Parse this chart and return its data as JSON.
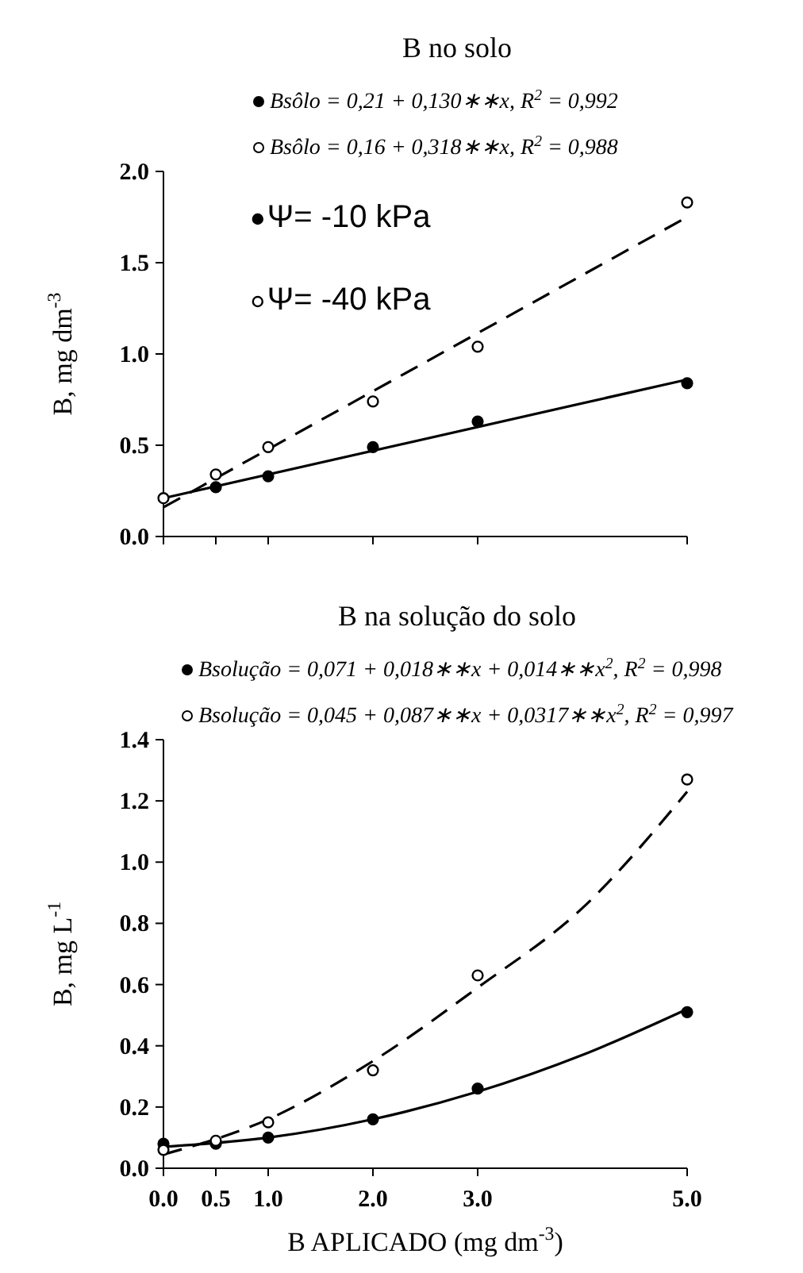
{
  "chart_data": [
    {
      "type": "scatter",
      "title": "B no solo",
      "ylabel": "B, mg dm$^{-3}$",
      "xlim": [
        0,
        5
      ],
      "xticks": [
        {
          "value": 0,
          "label": null
        },
        {
          "value": 0.5,
          "label": null
        },
        {
          "value": 1,
          "label": null
        },
        {
          "value": 2,
          "label": null
        },
        {
          "value": 3,
          "label": null
        },
        {
          "value": 5,
          "label": null
        }
      ],
      "ylim": [
        0,
        2
      ],
      "yticks": [
        {
          "value": 0,
          "label": "0.0"
        },
        {
          "value": 0.5,
          "label": "0.5"
        },
        {
          "value": 1,
          "label": "1.0"
        },
        {
          "value": 1.5,
          "label": "1.5"
        },
        {
          "value": 2,
          "label": "2.0"
        }
      ],
      "tick_labels": "y",
      "grid": false,
      "legend": "top left",
      "marker": "circle",
      "annotations": [
        "Bsôlo = 0,21 + 0,130∗∗x, R$^{2}$ = 0,992",
        "Bsôlo = 0,16 + 0,318∗∗x, R$^{2}$ = 0,988"
      ],
      "series": [
        {
          "name": "Ψ= -10 kPa",
          "color": "#000000",
          "x": [
            0.5,
            1,
            2,
            3,
            5
          ],
          "values": [
            0.27,
            0.33,
            0.49,
            0.63,
            0.84
          ]
        },
        {
          "name": "Ψ= -40 kPa",
          "color": "#ffffff",
          "x": [
            0,
            0.5,
            1,
            2,
            3,
            5
          ],
          "values": [
            0.21,
            0.34,
            0.49,
            0.74,
            1.04,
            1.83
          ]
        },
        {
          "type": "line",
          "color": "#000000",
          "line_style": "solid",
          "marker": "none",
          "x": [
            0,
            5
          ],
          "values": [
            0.21,
            0.86
          ]
        },
        {
          "type": "line",
          "color": "#000000",
          "line_style": "dashed",
          "marker": "none",
          "x": [
            0,
            5
          ],
          "values": [
            0.16,
            1.75
          ]
        }
      ]
    },
    {
      "type": "scatter",
      "title": "B na solução do solo",
      "xlabel": "B APLICADO (mg dm$^{-3}$)",
      "ylabel": "B, mg L$^{-1}$",
      "xlim": [
        0,
        5
      ],
      "xticks": [
        {
          "value": 0,
          "label": "0.0"
        },
        {
          "value": 0.5,
          "label": "0.5"
        },
        {
          "value": 1,
          "label": "1.0"
        },
        {
          "value": 2,
          "label": "2.0"
        },
        {
          "value": 3,
          "label": "3.0"
        },
        {
          "value": 5,
          "label": "5.0"
        }
      ],
      "ylim": [
        0,
        1.4
      ],
      "yticks": [
        {
          "value": 0,
          "label": "0.0"
        },
        {
          "value": 0.2,
          "label": "0.2"
        },
        {
          "value": 0.4,
          "label": "0.4"
        },
        {
          "value": 0.6,
          "label": "0.6"
        },
        {
          "value": 0.8,
          "label": "0.8"
        },
        {
          "value": 1,
          "label": "1.0"
        },
        {
          "value": 1.2,
          "label": "1.2"
        },
        {
          "value": 1.4,
          "label": "1.4"
        }
      ],
      "grid": false,
      "legend": false,
      "marker": "circle",
      "annotations": [
        "Bsolução = 0,071 + 0,018∗∗x + 0,014∗∗x$^{2}$, R$^{2}$ = 0,998",
        "Bsolução = 0,045 + 0,087∗∗x + 0,0317∗∗x$^{2}$, R$^{2}$ = 0,997"
      ],
      "series": [
        {
          "color": "#000000",
          "x": [
            0,
            0.5,
            1,
            2,
            3,
            5
          ],
          "values": [
            0.08,
            0.08,
            0.1,
            0.16,
            0.26,
            0.51
          ]
        },
        {
          "color": "#ffffff",
          "x": [
            0,
            0.5,
            1,
            2,
            3,
            5
          ],
          "values": [
            0.06,
            0.09,
            0.15,
            0.32,
            0.63,
            1.27
          ]
        },
        {
          "type": "line",
          "color": "#000000",
          "line_style": "solid",
          "marker": "none",
          "x": [
            0,
            1,
            2,
            3,
            4,
            5
          ],
          "values": [
            0.07,
            0.1,
            0.16,
            0.25,
            0.37,
            0.52
          ]
        },
        {
          "type": "line",
          "color": "#000000",
          "line_style": "dashed",
          "marker": "none",
          "x": [
            0,
            1,
            2,
            3,
            4,
            5
          ],
          "values": [
            0.045,
            0.16,
            0.35,
            0.59,
            0.85,
            1.23
          ]
        }
      ]
    }
  ]
}
